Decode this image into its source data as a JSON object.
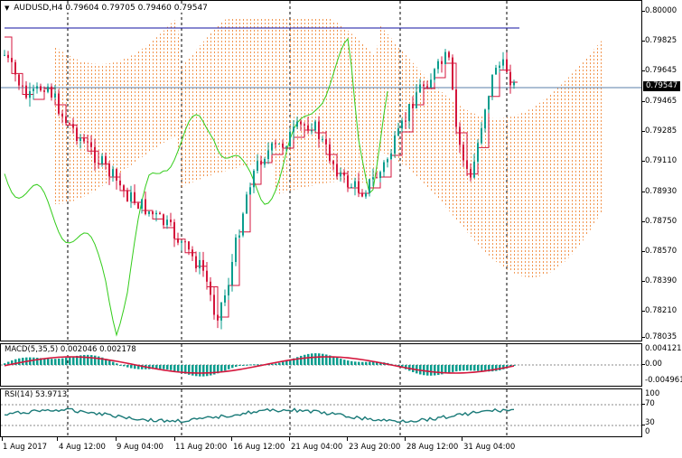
{
  "main_chart": {
    "symbol": "AUDUSD,H4",
    "ohlc": [
      "0.79604",
      "0.79705",
      "0.79460",
      "0.79547"
    ],
    "current_price": "0.79547",
    "price_labels": [
      "0.80000",
      "0.79825",
      "0.79645",
      "0.79465",
      "0.79285",
      "0.79110",
      "0.78930",
      "0.78750",
      "0.78570",
      "0.78390",
      "0.78210",
      "0.78035"
    ],
    "colors": {
      "bull": "#0a9d8e",
      "bear": "#d4163c",
      "tenkan": "#d4163c",
      "kijun": "#1010a0",
      "chikou": "#33cc1a",
      "kumo_up": "#f08a3c",
      "kumo_down": "#b07aa0"
    }
  },
  "macd": {
    "label": "MACD(5,35,5)",
    "values": [
      "0.002046",
      "0.002178"
    ],
    "scale_labels": [
      "0.004121",
      "0.00",
      "-0.004961"
    ]
  },
  "rsi": {
    "label": "RSI(14)",
    "value": "53.9713",
    "scale_labels": [
      "100",
      "70",
      "30",
      "0"
    ]
  },
  "time_axis": {
    "labels": [
      "1 Aug 2017",
      "4 Aug 12:00",
      "9 Aug 04:00",
      "11 Aug 20:00",
      "16 Aug 12:00",
      "21 Aug 04:00",
      "23 Aug 20:00",
      "28 Aug 12:00",
      "31 Aug 04:00"
    ]
  }
}
